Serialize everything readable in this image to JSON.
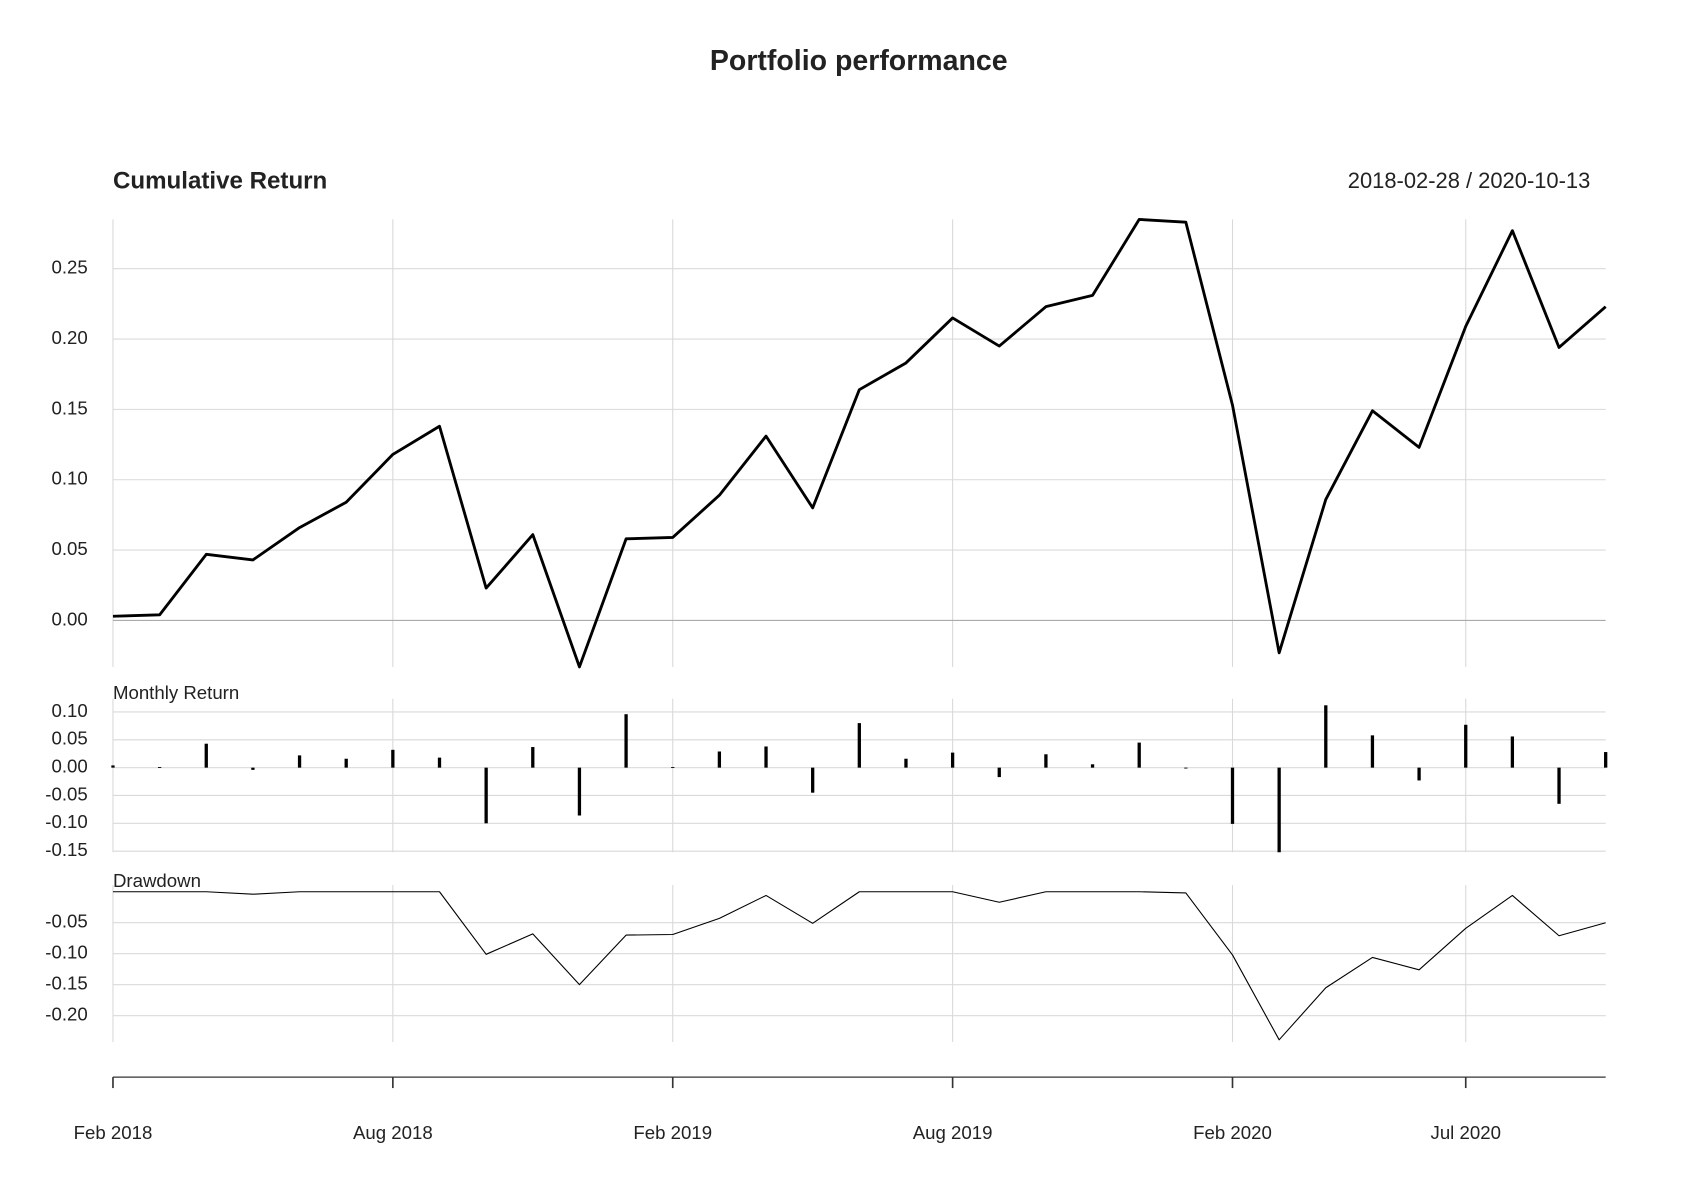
{
  "title": "Portfolio performance",
  "date_range": "2018-02-28 / 2020-10-13",
  "chart_data": [
    {
      "type": "line",
      "title": "Cumulative Return",
      "color": "#000000",
      "x": [
        "2018-02",
        "2018-03",
        "2018-04",
        "2018-05",
        "2018-06",
        "2018-07",
        "2018-08",
        "2018-09",
        "2018-10",
        "2018-11",
        "2018-12",
        "2019-01",
        "2019-02",
        "2019-03",
        "2019-04",
        "2019-05",
        "2019-06",
        "2019-07",
        "2019-08",
        "2019-09",
        "2019-10",
        "2019-11",
        "2019-12",
        "2020-01",
        "2020-02",
        "2020-03",
        "2020-04",
        "2020-05",
        "2020-06",
        "2020-07",
        "2020-08",
        "2020-09",
        "2020-10"
      ],
      "values": [
        0.003,
        0.004,
        0.047,
        0.043,
        0.066,
        0.084,
        0.118,
        0.138,
        0.023,
        0.061,
        -0.033,
        0.058,
        0.059,
        0.089,
        0.131,
        0.08,
        0.164,
        0.183,
        0.215,
        0.195,
        0.223,
        0.231,
        0.285,
        0.283,
        0.153,
        -0.023,
        0.086,
        0.149,
        0.123,
        0.209,
        0.277,
        0.194,
        0.223
      ],
      "ylim": [
        -0.033,
        0.285
      ],
      "yticks": [
        {
          "value": 0,
          "label": "0.00"
        },
        0.05,
        {
          "value": 0.1,
          "label": "0.10"
        },
        0.15,
        {
          "value": 0.2,
          "label": "0.20"
        },
        0.25
      ],
      "grid": true
    },
    {
      "type": "bar",
      "title": "Monthly Return",
      "color": "#000000",
      "x": [
        "2018-02",
        "2018-03",
        "2018-04",
        "2018-05",
        "2018-06",
        "2018-07",
        "2018-08",
        "2018-09",
        "2018-10",
        "2018-11",
        "2018-12",
        "2019-01",
        "2019-02",
        "2019-03",
        "2019-04",
        "2019-05",
        "2019-06",
        "2019-07",
        "2019-08",
        "2019-09",
        "2019-10",
        "2019-11",
        "2019-12",
        "2020-01",
        "2020-02",
        "2020-03",
        "2020-04",
        "2020-05",
        "2020-06",
        "2020-07",
        "2020-08",
        "2020-09",
        "2020-10"
      ],
      "values": [
        0.004,
        0.001,
        0.043,
        -0.004,
        0.022,
        0.016,
        0.032,
        0.018,
        -0.1,
        0.037,
        -0.086,
        0.096,
        0.001,
        0.029,
        0.038,
        -0.045,
        0.08,
        0.016,
        0.027,
        -0.017,
        0.024,
        0.006,
        0.045,
        -0.001,
        -0.101,
        -0.152,
        0.112,
        0.058,
        -0.023,
        0.077,
        0.056,
        -0.065,
        0.028
      ],
      "ylim": [
        -0.152,
        0.112
      ],
      "yticks": [
        {
          "value": 0.1,
          "label": "0.10"
        },
        0.05,
        {
          "value": 0,
          "label": "0.00"
        },
        -0.05,
        {
          "value": -0.1,
          "label": "-0.10"
        },
        -0.15
      ],
      "grid": true
    },
    {
      "type": "line",
      "title": "Drawdown",
      "color": "#000000",
      "x": [
        "2018-02",
        "2018-03",
        "2018-04",
        "2018-05",
        "2018-06",
        "2018-07",
        "2018-08",
        "2018-09",
        "2018-10",
        "2018-11",
        "2018-12",
        "2019-01",
        "2019-02",
        "2019-03",
        "2019-04",
        "2019-05",
        "2019-06",
        "2019-07",
        "2019-08",
        "2019-09",
        "2019-10",
        "2019-11",
        "2019-12",
        "2020-01",
        "2020-02",
        "2020-03",
        "2020-04",
        "2020-05",
        "2020-06",
        "2020-07",
        "2020-08",
        "2020-09",
        "2020-10"
      ],
      "values": [
        0,
        0,
        0,
        -0.004,
        0,
        0,
        0,
        0,
        -0.101,
        -0.068,
        -0.15,
        -0.07,
        -0.069,
        -0.043,
        -0.006,
        -0.051,
        0,
        0,
        0,
        -0.017,
        0,
        0,
        0,
        -0.002,
        -0.102,
        -0.239,
        -0.155,
        -0.106,
        -0.126,
        -0.059,
        -0.006,
        -0.071,
        -0.05
      ],
      "ylim": [
        -0.239,
        0
      ],
      "yticks": [
        -0.05,
        {
          "value": -0.1,
          "label": "-0.10"
        },
        -0.15,
        {
          "value": -0.2,
          "label": "-0.20"
        }
      ],
      "xticks": [
        {
          "value": "2018-02",
          "label": "Feb 2018"
        },
        {
          "value": "2018-08",
          "label": "Aug 2018"
        },
        {
          "value": "2019-02",
          "label": "Feb 2019"
        },
        {
          "value": "2019-08",
          "label": "Aug 2019"
        },
        {
          "value": "2020-02",
          "label": "Feb 2020"
        },
        {
          "value": "2020-07",
          "label": "Jul 2020"
        }
      ],
      "grid": true
    }
  ]
}
